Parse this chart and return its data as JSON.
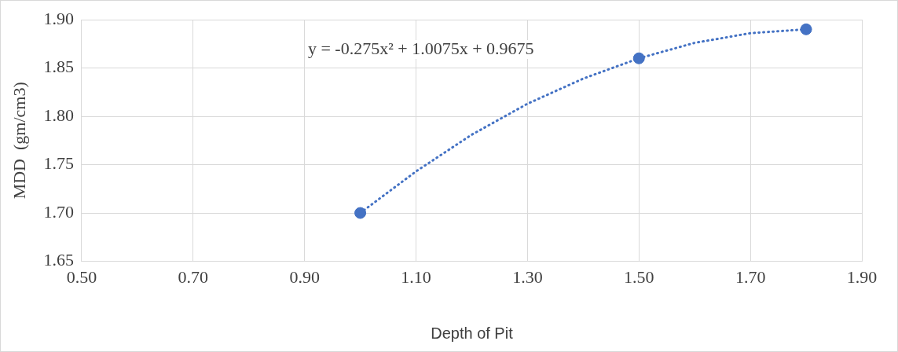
{
  "chart_data": {
    "type": "scatter",
    "xlabel": "Depth of Pit",
    "ylabel": "MDD  (gm/cm3)",
    "xlim": [
      0.5,
      1.9
    ],
    "xticks": [
      {
        "value": 0.5,
        "label": "0.50"
      },
      {
        "value": 0.7,
        "label": "0.70"
      },
      {
        "value": 0.9,
        "label": "0.90"
      },
      {
        "value": 1.1,
        "label": "1.10"
      },
      {
        "value": 1.3,
        "label": "1.30"
      },
      {
        "value": 1.5,
        "label": "1.50"
      },
      {
        "value": 1.7,
        "label": "1.70"
      },
      {
        "value": 1.9,
        "label": "1.90"
      }
    ],
    "ylim": [
      1.65,
      1.9
    ],
    "yticks": [
      {
        "value": 1.65,
        "label": "1.65"
      },
      {
        "value": 1.7,
        "label": "1.70"
      },
      {
        "value": 1.75,
        "label": "1.75"
      },
      {
        "value": 1.8,
        "label": "1.80"
      },
      {
        "value": 1.85,
        "label": "1.85"
      },
      {
        "value": 1.9,
        "label": "1.90"
      }
    ],
    "grid": true,
    "legend": false,
    "marker": "circle",
    "series": [
      {
        "color": "#4472c4",
        "x": [
          1.0,
          1.5,
          1.8
        ],
        "values": [
          1.7,
          1.86,
          1.89
        ]
      },
      {
        "type": "line",
        "color": "#4472c4",
        "marker": "none",
        "line_style": "dotted",
        "x": [
          1.0,
          1.1,
          1.2,
          1.3,
          1.4,
          1.5,
          1.6,
          1.7,
          1.8
        ],
        "values": [
          1.7,
          1.743,
          1.781,
          1.813,
          1.839,
          1.86,
          1.876,
          1.886,
          1.89
        ]
      }
    ],
    "annotations": [
      "y = -0.275x² + 1.0075x + 0.9675"
    ]
  }
}
